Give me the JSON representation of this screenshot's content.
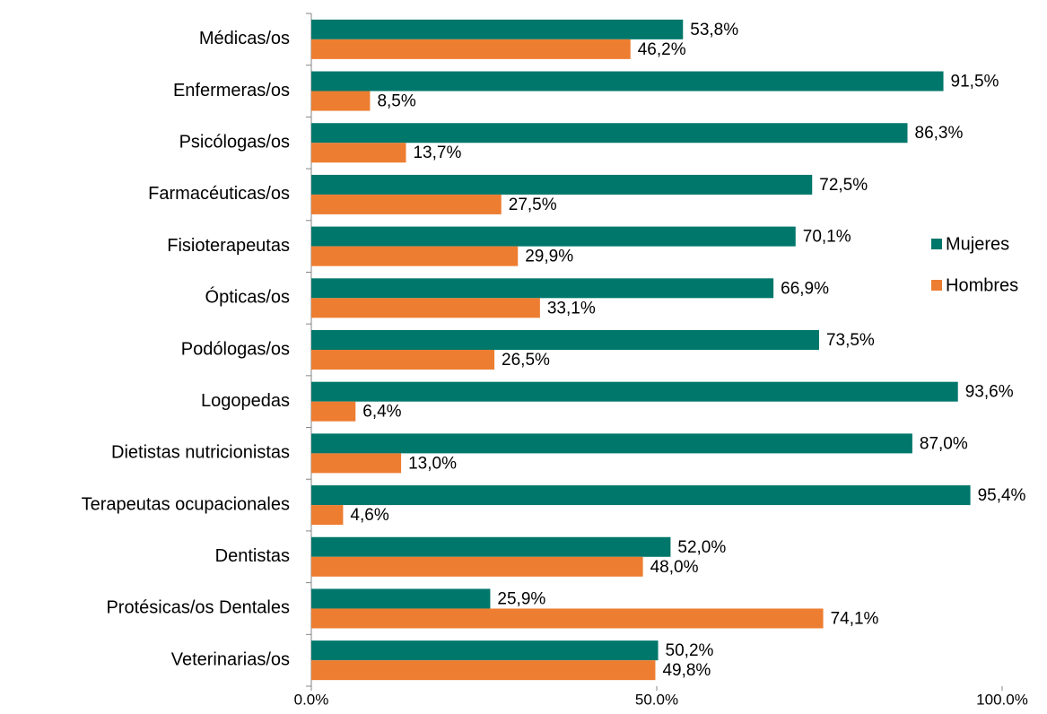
{
  "chart_data": {
    "type": "hbar",
    "categories": [
      "Médicas/os",
      "Enfermeras/os",
      "Psicólogas/os",
      "Farmacéuticas/os",
      "Fisioterapeutas",
      "Ópticas/os",
      "Podólogas/os",
      "Logopedas",
      "Dietistas nutricionistas",
      "Terapeutas ocupacionales",
      "Dentistas",
      "Protésicas/os Dentales",
      "Veterinarias/os"
    ],
    "series": [
      {
        "name": "Mujeres",
        "color": "#00776b",
        "values": [
          53.8,
          91.5,
          86.3,
          72.5,
          70.1,
          66.9,
          73.5,
          93.6,
          87.0,
          95.4,
          52.0,
          25.9,
          50.2
        ],
        "value_labels": [
          "53,8%",
          "91,5%",
          "86,3%",
          "72,5%",
          "70,1%",
          "66,9%",
          "73,5%",
          "93,6%",
          "87,0%",
          "95,4%",
          "52,0%",
          "25,9%",
          "50,2%"
        ]
      },
      {
        "name": "Hombres",
        "color": "#ed7d31",
        "values": [
          46.2,
          8.5,
          13.7,
          27.5,
          29.9,
          33.1,
          26.5,
          6.4,
          13.0,
          4.6,
          48.0,
          74.1,
          49.8
        ],
        "value_labels": [
          "46,2%",
          "8,5%",
          "13,7%",
          "27,5%",
          "29,9%",
          "33,1%",
          "26,5%",
          "6,4%",
          "13,0%",
          "4,6%",
          "48,0%",
          "74,1%",
          "49,8%"
        ]
      }
    ],
    "xlim": [
      0,
      100
    ],
    "xticks": [
      {
        "value": 0,
        "label": "0.0%"
      },
      {
        "value": 50,
        "label": "50.0%"
      },
      {
        "value": 100,
        "label": "100.0%"
      }
    ],
    "legend": "right"
  }
}
